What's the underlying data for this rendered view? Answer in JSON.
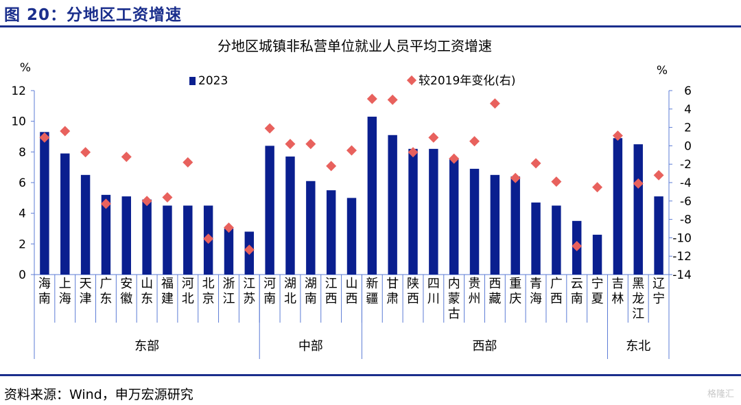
{
  "figure_title": "图 20：分地区工资增速",
  "source": "资料来源：Wind，申万宏源研究",
  "watermark": "格隆汇",
  "colors": {
    "bar": "#0a1f8f",
    "marker": "#e8615d",
    "accent": "#1a2e8c"
  },
  "chart_data": {
    "type": "bar",
    "title": "分地区城镇非私营单位就业人员平均工资增速",
    "left_unit": "%",
    "right_unit": "%",
    "categories": [
      "海南",
      "上海",
      "天津",
      "广东",
      "安徽",
      "山东",
      "福建",
      "河北",
      "北京",
      "浙江",
      "江苏",
      "河南",
      "湖北",
      "湖南",
      "江西",
      "山西",
      "新疆",
      "甘肃",
      "陕西",
      "四川",
      "内蒙古",
      "贵州",
      "西藏",
      "重庆",
      "青海",
      "广西",
      "云南",
      "宁夏",
      "吉林",
      "黑龙江",
      "辽宁"
    ],
    "groups": [
      {
        "name": "东部",
        "count": 11
      },
      {
        "name": "中部",
        "count": 5
      },
      {
        "name": "西部",
        "count": 12
      },
      {
        "name": "东北",
        "count": 3
      }
    ],
    "series": [
      {
        "name": "2023",
        "type": "bar",
        "axis": "left",
        "values": [
          9.3,
          7.9,
          6.5,
          5.2,
          5.1,
          4.9,
          4.5,
          4.5,
          4.5,
          3.0,
          2.8,
          8.4,
          7.7,
          6.1,
          5.5,
          5.0,
          10.3,
          9.1,
          8.2,
          8.2,
          7.6,
          6.9,
          6.5,
          6.4,
          4.7,
          4.5,
          3.5,
          2.6,
          8.9,
          8.5,
          5.1
        ]
      },
      {
        "name": "较2019年变化(右)",
        "type": "scatter",
        "axis": "right",
        "values": [
          0.9,
          1.6,
          -0.7,
          -6.3,
          -1.2,
          -6.0,
          -5.6,
          -1.8,
          -10.1,
          -8.9,
          -11.3,
          1.9,
          0.2,
          0.2,
          -2.2,
          -0.5,
          5.1,
          5.0,
          -0.7,
          0.9,
          -1.4,
          0.5,
          4.6,
          -3.5,
          -1.9,
          -3.9,
          -10.9,
          -4.5,
          1.1,
          -4.1,
          -3.2
        ]
      }
    ],
    "y_left": {
      "min": 0,
      "max": 12,
      "ticks": [
        "0",
        "2",
        "4",
        "6",
        "8",
        "10",
        "12"
      ]
    },
    "y_right": {
      "min": -14,
      "max": 6,
      "ticks": [
        "-14",
        "-12",
        "-10",
        "-8",
        "-6",
        "-4",
        "-2",
        "0",
        "2",
        "4",
        "6"
      ]
    },
    "legend_placement": "top",
    "grid": false
  }
}
